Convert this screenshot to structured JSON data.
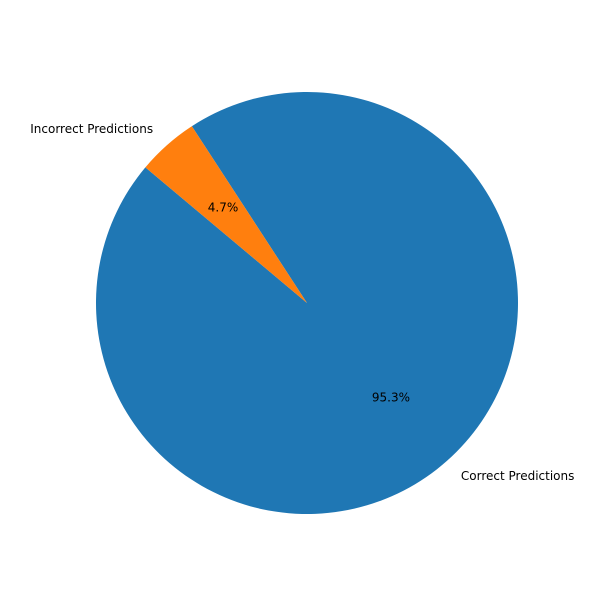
{
  "chart_data": {
    "type": "pie",
    "start_angle_deg": 140,
    "direction": "counterclockwise",
    "slices": [
      {
        "label": "Correct Predictions",
        "value": 95.3,
        "pct_label": "95.3%",
        "color": "#1f77b4"
      },
      {
        "label": "Incorrect Predictions",
        "value": 4.7,
        "pct_label": "4.7%",
        "color": "#ff7f0e"
      }
    ]
  }
}
